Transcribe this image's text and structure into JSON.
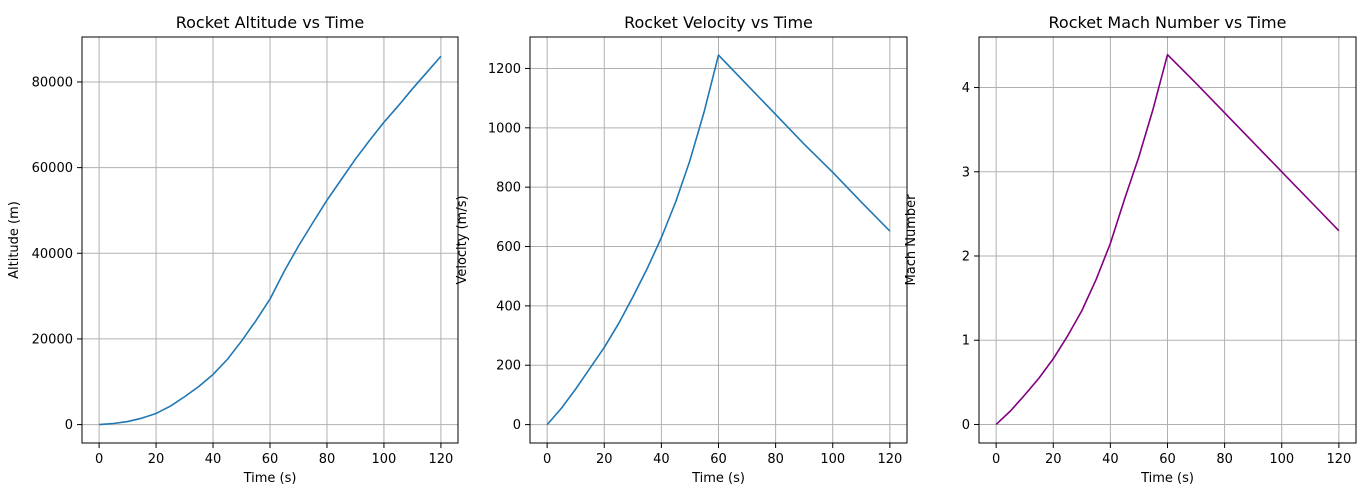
{
  "chart_data": [
    {
      "type": "line",
      "title": "Rocket Altitude vs Time",
      "xlabel": "Time (s)",
      "ylabel": "Altitude (m)",
      "xlim": [
        -6,
        126
      ],
      "ylim": [
        -4300,
        90500
      ],
      "xticks": [
        0,
        20,
        40,
        60,
        80,
        100,
        120
      ],
      "yticks": [
        0,
        20000,
        40000,
        60000,
        80000
      ],
      "ytick_labels": [
        "0",
        "20000",
        "40000",
        "60000",
        "80000"
      ],
      "grid": true,
      "color": "#1f77b4",
      "series": [
        {
          "x": [
            0,
            5,
            10,
            15,
            20,
            25,
            30,
            35,
            40,
            45,
            50,
            55,
            60,
            65,
            70,
            75,
            80,
            85,
            90,
            95,
            100,
            105,
            110,
            115,
            120
          ],
          "y": [
            0,
            250,
            700,
            1500,
            2600,
            4300,
            6500,
            8900,
            11700,
            15200,
            19500,
            24200,
            29300,
            35800,
            41700,
            47100,
            52400,
            57200,
            62000,
            66400,
            70600,
            74400,
            78400,
            82200,
            86000
          ]
        }
      ]
    },
    {
      "type": "line",
      "title": "Rocket Velocity vs Time",
      "xlabel": "Time (s)",
      "ylabel": "Velocity (m/s)",
      "xlim": [
        -6,
        126
      ],
      "ylim": [
        -62,
        1306
      ],
      "xticks": [
        0,
        20,
        40,
        60,
        80,
        100,
        120
      ],
      "yticks": [
        0,
        200,
        400,
        600,
        800,
        1000,
        1200
      ],
      "ytick_labels": [
        "0",
        "200",
        "400",
        "600",
        "800",
        "1000",
        "1200"
      ],
      "grid": true,
      "color": "#1f77b4",
      "series": [
        {
          "x": [
            0,
            5,
            10,
            15,
            20,
            25,
            30,
            35,
            40,
            45,
            50,
            55,
            60,
            70,
            80,
            90,
            100,
            110,
            120
          ],
          "y": [
            0,
            55,
            120,
            190,
            260,
            340,
            430,
            525,
            630,
            750,
            890,
            1055,
            1245,
            1145,
            1045,
            945,
            850,
            750,
            652
          ]
        }
      ]
    },
    {
      "type": "line",
      "title": "Rocket Mach Number vs Time",
      "xlabel": "Time (s)",
      "ylabel": "Mach Number",
      "xlim": [
        -6,
        126
      ],
      "ylim": [
        -0.22,
        4.6
      ],
      "xticks": [
        0,
        20,
        40,
        60,
        80,
        100,
        120
      ],
      "yticks": [
        0,
        1,
        2,
        3,
        4
      ],
      "ytick_labels": [
        "0",
        "1",
        "2",
        "3",
        "4"
      ],
      "grid": true,
      "color": "#800080",
      "series": [
        {
          "x": [
            0,
            5,
            10,
            15,
            20,
            25,
            30,
            35,
            40,
            45,
            50,
            55,
            60,
            70,
            80,
            90,
            100,
            110,
            120
          ],
          "y": [
            0,
            0.16,
            0.35,
            0.55,
            0.78,
            1.05,
            1.35,
            1.72,
            2.15,
            2.68,
            3.18,
            3.75,
            4.39,
            4.05,
            3.7,
            3.35,
            3.0,
            2.65,
            2.3
          ]
        }
      ]
    }
  ]
}
